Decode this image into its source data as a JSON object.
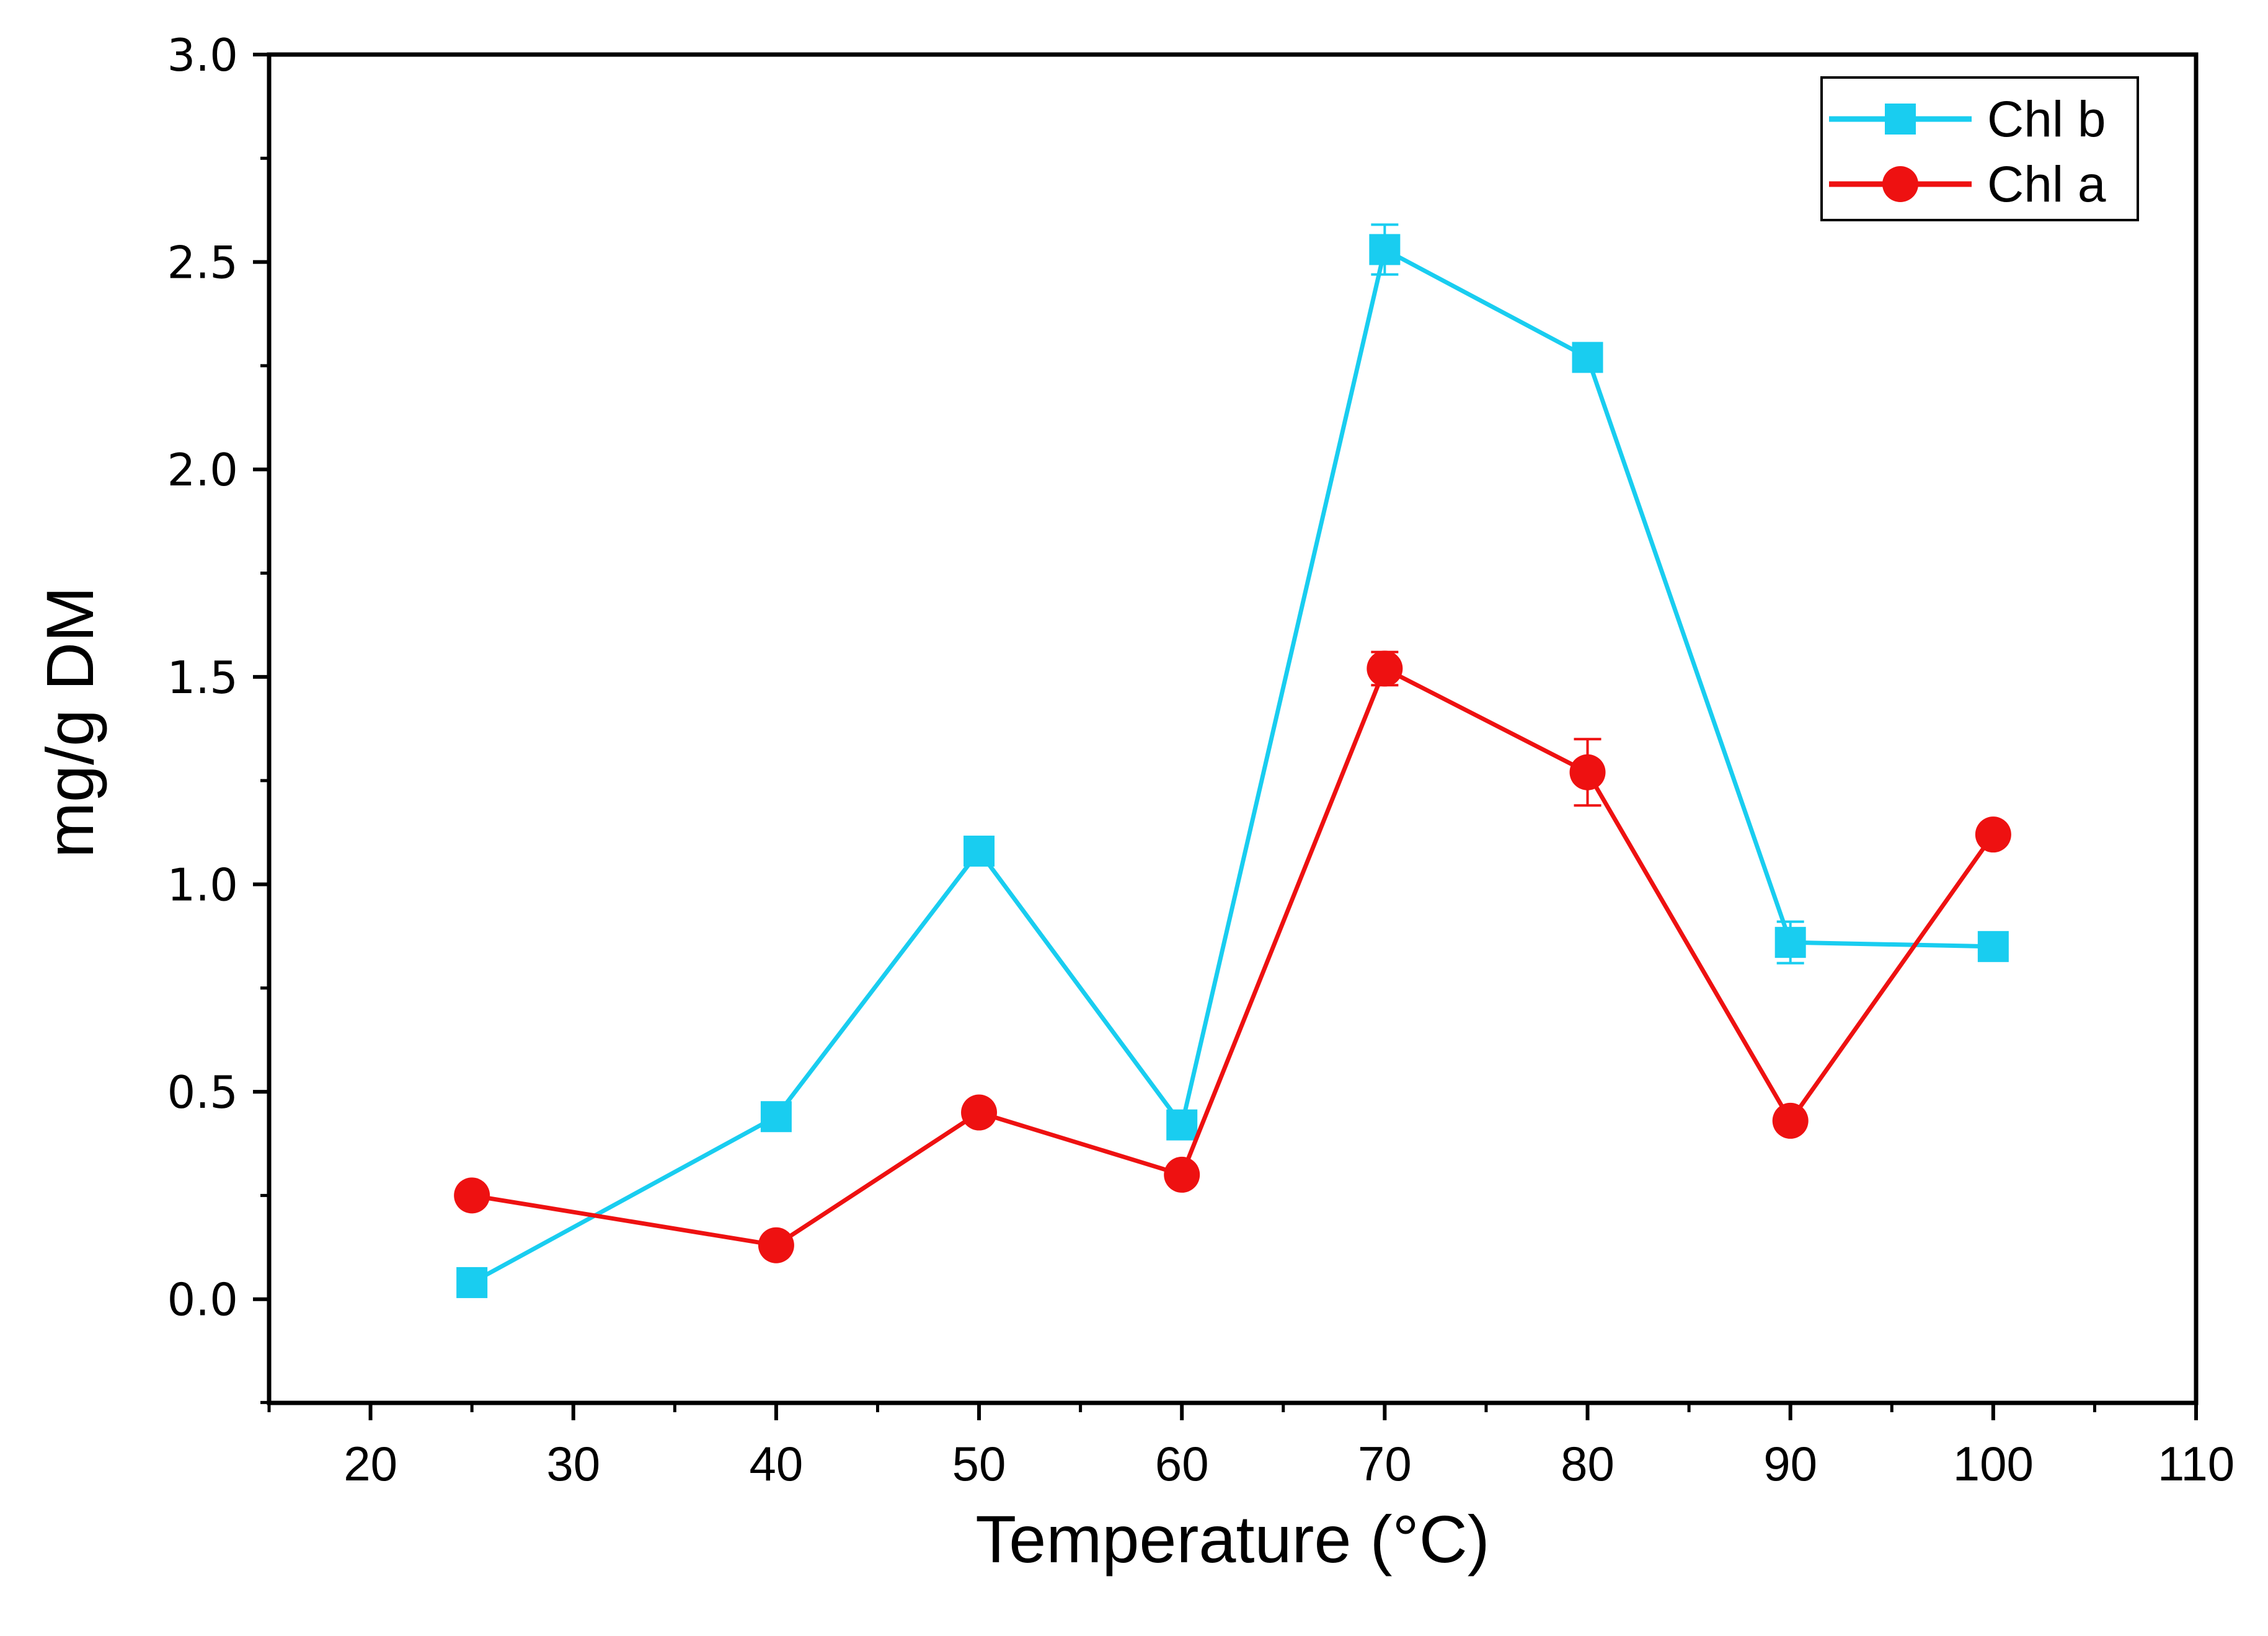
{
  "chart_data": {
    "type": "line",
    "title": "",
    "xlabel": "Temperature (°C)",
    "ylabel": "mg/g DM",
    "xlim": [
      15,
      110
    ],
    "ylim": [
      -0.25,
      3.0
    ],
    "x_ticks": [
      20,
      30,
      40,
      50,
      60,
      70,
      80,
      90,
      100,
      110
    ],
    "x_tick_labels": [
      "20",
      "30",
      "40",
      "50",
      "60",
      "70",
      "80",
      "90",
      "100",
      "110"
    ],
    "y_ticks": [
      0.0,
      0.5,
      1.0,
      1.5,
      2.0,
      2.5,
      3.0
    ],
    "y_tick_labels": [
      "0.0",
      "0.5",
      "1.0",
      "1.5",
      "2.0",
      "2.5",
      "3.0"
    ],
    "legend_position": "top-right",
    "grid": false,
    "x": [
      25,
      40,
      50,
      60,
      70,
      80,
      90,
      100
    ],
    "series": [
      {
        "name": "Chl b",
        "color": "#19cdf0",
        "marker": "square",
        "values": [
          0.04,
          0.44,
          1.08,
          0.42,
          2.53,
          2.27,
          0.86,
          0.85
        ],
        "errors": [
          0.01,
          0.02,
          0.02,
          0.02,
          0.06,
          0.03,
          0.05,
          0.03
        ]
      },
      {
        "name": "Chl a",
        "color": "#ee1111",
        "marker": "circle",
        "values": [
          0.25,
          0.13,
          0.45,
          0.3,
          1.52,
          1.27,
          0.43,
          1.12
        ],
        "errors": [
          0.01,
          0.01,
          0.01,
          0.01,
          0.04,
          0.08,
          0.01,
          0.01
        ]
      }
    ]
  }
}
